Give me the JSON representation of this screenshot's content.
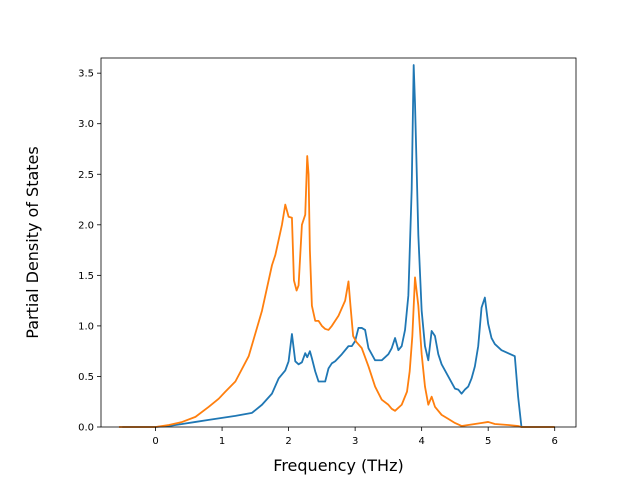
{
  "chart_data": {
    "type": "line",
    "title": "",
    "xlabel": "Frequency (THz)",
    "ylabel": "Partial Density of States",
    "xlim": [
      -0.82,
      6.32
    ],
    "ylim": [
      0.0,
      3.65
    ],
    "xticks": [
      0,
      1,
      2,
      3,
      4,
      5,
      6
    ],
    "yticks": [
      0.0,
      0.5,
      1.0,
      1.5,
      2.0,
      2.5,
      3.0,
      3.5
    ],
    "xtick_labels": [
      "0",
      "1",
      "2",
      "3",
      "4",
      "5",
      "6"
    ],
    "ytick_labels": [
      "0.0",
      "0.5",
      "1.0",
      "1.5",
      "2.0",
      "2.5",
      "3.0",
      "3.5"
    ],
    "grid": false,
    "legend": "none",
    "series": [
      {
        "color": "#1f77b4",
        "x": [
          -0.5,
          0.0,
          0.2,
          0.4,
          0.6,
          0.8,
          1.0,
          1.2,
          1.45,
          1.6,
          1.75,
          1.85,
          1.95,
          2.0,
          2.05,
          2.1,
          2.15,
          2.2,
          2.25,
          2.28,
          2.32,
          2.35,
          2.4,
          2.45,
          2.55,
          2.6,
          2.65,
          2.7,
          2.8,
          2.9,
          2.95,
          3.0,
          3.05,
          3.1,
          3.15,
          3.2,
          3.3,
          3.4,
          3.5,
          3.55,
          3.6,
          3.65,
          3.7,
          3.75,
          3.8,
          3.85,
          3.88,
          3.9,
          3.95,
          4.0,
          4.05,
          4.1,
          4.15,
          4.2,
          4.25,
          4.3,
          4.4,
          4.5,
          4.55,
          4.6,
          4.65,
          4.7,
          4.75,
          4.8,
          4.85,
          4.9,
          4.95,
          5.0,
          5.05,
          5.1,
          5.2,
          5.3,
          5.4,
          5.45,
          5.5,
          6.0
        ],
        "values": [
          0.0,
          0.0,
          0.01,
          0.03,
          0.05,
          0.07,
          0.09,
          0.11,
          0.14,
          0.22,
          0.33,
          0.48,
          0.56,
          0.65,
          0.92,
          0.65,
          0.62,
          0.64,
          0.73,
          0.69,
          0.75,
          0.68,
          0.55,
          0.45,
          0.45,
          0.58,
          0.63,
          0.65,
          0.72,
          0.8,
          0.8,
          0.85,
          0.98,
          0.98,
          0.96,
          0.78,
          0.66,
          0.66,
          0.72,
          0.78,
          0.88,
          0.76,
          0.8,
          0.96,
          1.3,
          2.35,
          3.58,
          3.2,
          1.9,
          1.15,
          0.8,
          0.66,
          0.95,
          0.9,
          0.72,
          0.62,
          0.5,
          0.38,
          0.37,
          0.33,
          0.37,
          0.4,
          0.48,
          0.6,
          0.8,
          1.18,
          1.28,
          1.02,
          0.88,
          0.82,
          0.76,
          0.73,
          0.7,
          0.3,
          0.0,
          0.0
        ]
      },
      {
        "color": "#ff7f0e",
        "x": [
          -0.55,
          0.0,
          0.2,
          0.4,
          0.6,
          0.8,
          0.95,
          1.05,
          1.2,
          1.4,
          1.6,
          1.75,
          1.8,
          1.9,
          1.95,
          2.0,
          2.05,
          2.08,
          2.12,
          2.15,
          2.2,
          2.25,
          2.28,
          2.3,
          2.32,
          2.35,
          2.4,
          2.45,
          2.5,
          2.55,
          2.6,
          2.65,
          2.75,
          2.85,
          2.9,
          2.93,
          2.97,
          3.02,
          3.1,
          3.2,
          3.3,
          3.4,
          3.5,
          3.55,
          3.6,
          3.7,
          3.78,
          3.82,
          3.86,
          3.9,
          3.95,
          4.0,
          4.05,
          4.1,
          4.15,
          4.2,
          4.3,
          4.4,
          4.5,
          4.6,
          4.7,
          4.8,
          4.9,
          5.0,
          5.1,
          5.3,
          5.45,
          5.5,
          6.0
        ],
        "values": [
          0.0,
          0.0,
          0.02,
          0.05,
          0.1,
          0.2,
          0.28,
          0.35,
          0.45,
          0.7,
          1.15,
          1.6,
          1.7,
          2.0,
          2.2,
          2.08,
          2.07,
          1.45,
          1.35,
          1.4,
          2.0,
          2.1,
          2.68,
          2.5,
          1.75,
          1.2,
          1.05,
          1.05,
          1.0,
          0.97,
          0.96,
          1.0,
          1.1,
          1.25,
          1.44,
          1.2,
          0.9,
          0.84,
          0.78,
          0.6,
          0.4,
          0.27,
          0.22,
          0.18,
          0.16,
          0.22,
          0.35,
          0.55,
          0.9,
          1.48,
          1.2,
          0.72,
          0.4,
          0.22,
          0.3,
          0.2,
          0.12,
          0.08,
          0.04,
          0.01,
          0.02,
          0.03,
          0.04,
          0.05,
          0.03,
          0.02,
          0.01,
          0.0,
          0.0
        ]
      }
    ]
  }
}
